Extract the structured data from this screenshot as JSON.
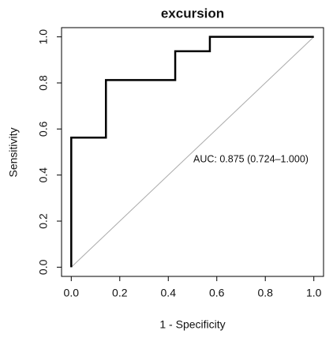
{
  "chart_data": {
    "type": "line",
    "title": "excursion",
    "x_label": "1 - Specificity",
    "y_label": "Sensitivity",
    "annotation": "AUC: 0.875 (0.724–1.000)",
    "xlim": [
      -0.04,
      1.04
    ],
    "ylim": [
      -0.04,
      1.04
    ],
    "xticks": [
      {
        "value": 0,
        "label": "0.0"
      },
      0.2,
      0.4,
      0.6,
      0.8,
      {
        "value": 1,
        "label": "1.0"
      }
    ],
    "yticks": [
      {
        "value": 0,
        "label": "0.0"
      },
      0.2,
      0.4,
      0.6,
      0.8,
      {
        "value": 1,
        "label": "1.0"
      }
    ],
    "series": [
      {
        "color": "#000000",
        "x": [
          0,
          0,
          0.1429,
          0.1429,
          0.4286,
          0.4286,
          0.5714,
          0.5714,
          1
        ],
        "values": [
          0,
          0.5625,
          0.5625,
          0.8125,
          0.8125,
          0.9375,
          0.9375,
          1,
          1
        ]
      }
    ]
  }
}
